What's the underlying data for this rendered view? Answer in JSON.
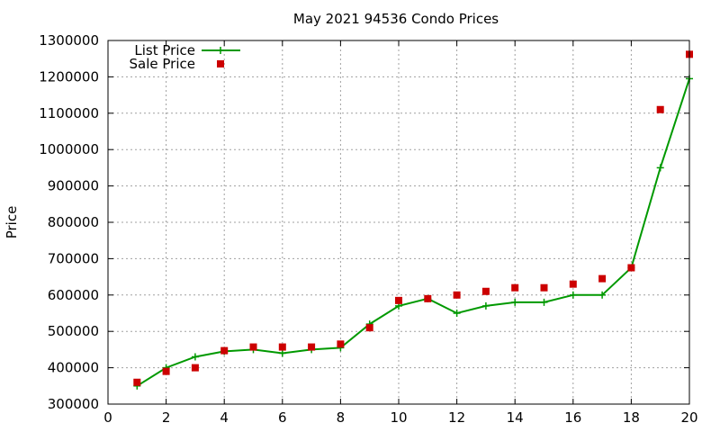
{
  "chart_data": {
    "type": "line",
    "title": "May 2021 94536 Condo Prices",
    "xlabel": "",
    "ylabel": "Price",
    "xlim": [
      0,
      20
    ],
    "ylim": [
      300000,
      1300000
    ],
    "x_ticks": [
      0,
      2,
      4,
      6,
      8,
      10,
      12,
      14,
      16,
      18,
      20
    ],
    "y_ticks": [
      300000,
      400000,
      500000,
      600000,
      700000,
      800000,
      900000,
      1000000,
      1100000,
      1200000,
      1300000
    ],
    "grid": true,
    "legend_position": "top-left",
    "series": [
      {
        "name": "List Price",
        "style": "line-plus",
        "color": "#009900",
        "x": [
          1,
          2,
          3,
          4,
          5,
          6,
          7,
          8,
          9,
          10,
          11,
          12,
          13,
          14,
          15,
          16,
          17,
          18,
          19,
          20
        ],
        "values": [
          350000,
          400000,
          430000,
          445000,
          450000,
          440000,
          450000,
          455000,
          520000,
          570000,
          590000,
          550000,
          570000,
          580000,
          580000,
          600000,
          600000,
          675000,
          950000,
          1195000
        ]
      },
      {
        "name": "Sale Price",
        "style": "square-points",
        "color": "#cc0000",
        "x": [
          1,
          2,
          3,
          4,
          5,
          6,
          7,
          8,
          9,
          10,
          11,
          12,
          13,
          14,
          15,
          16,
          17,
          18,
          19,
          20
        ],
        "values": [
          360000,
          390000,
          400000,
          447000,
          457000,
          457000,
          457000,
          465000,
          510000,
          585000,
          590000,
          600000,
          610000,
          620000,
          620000,
          630000,
          645000,
          675000,
          1110000,
          1262000
        ]
      }
    ]
  }
}
